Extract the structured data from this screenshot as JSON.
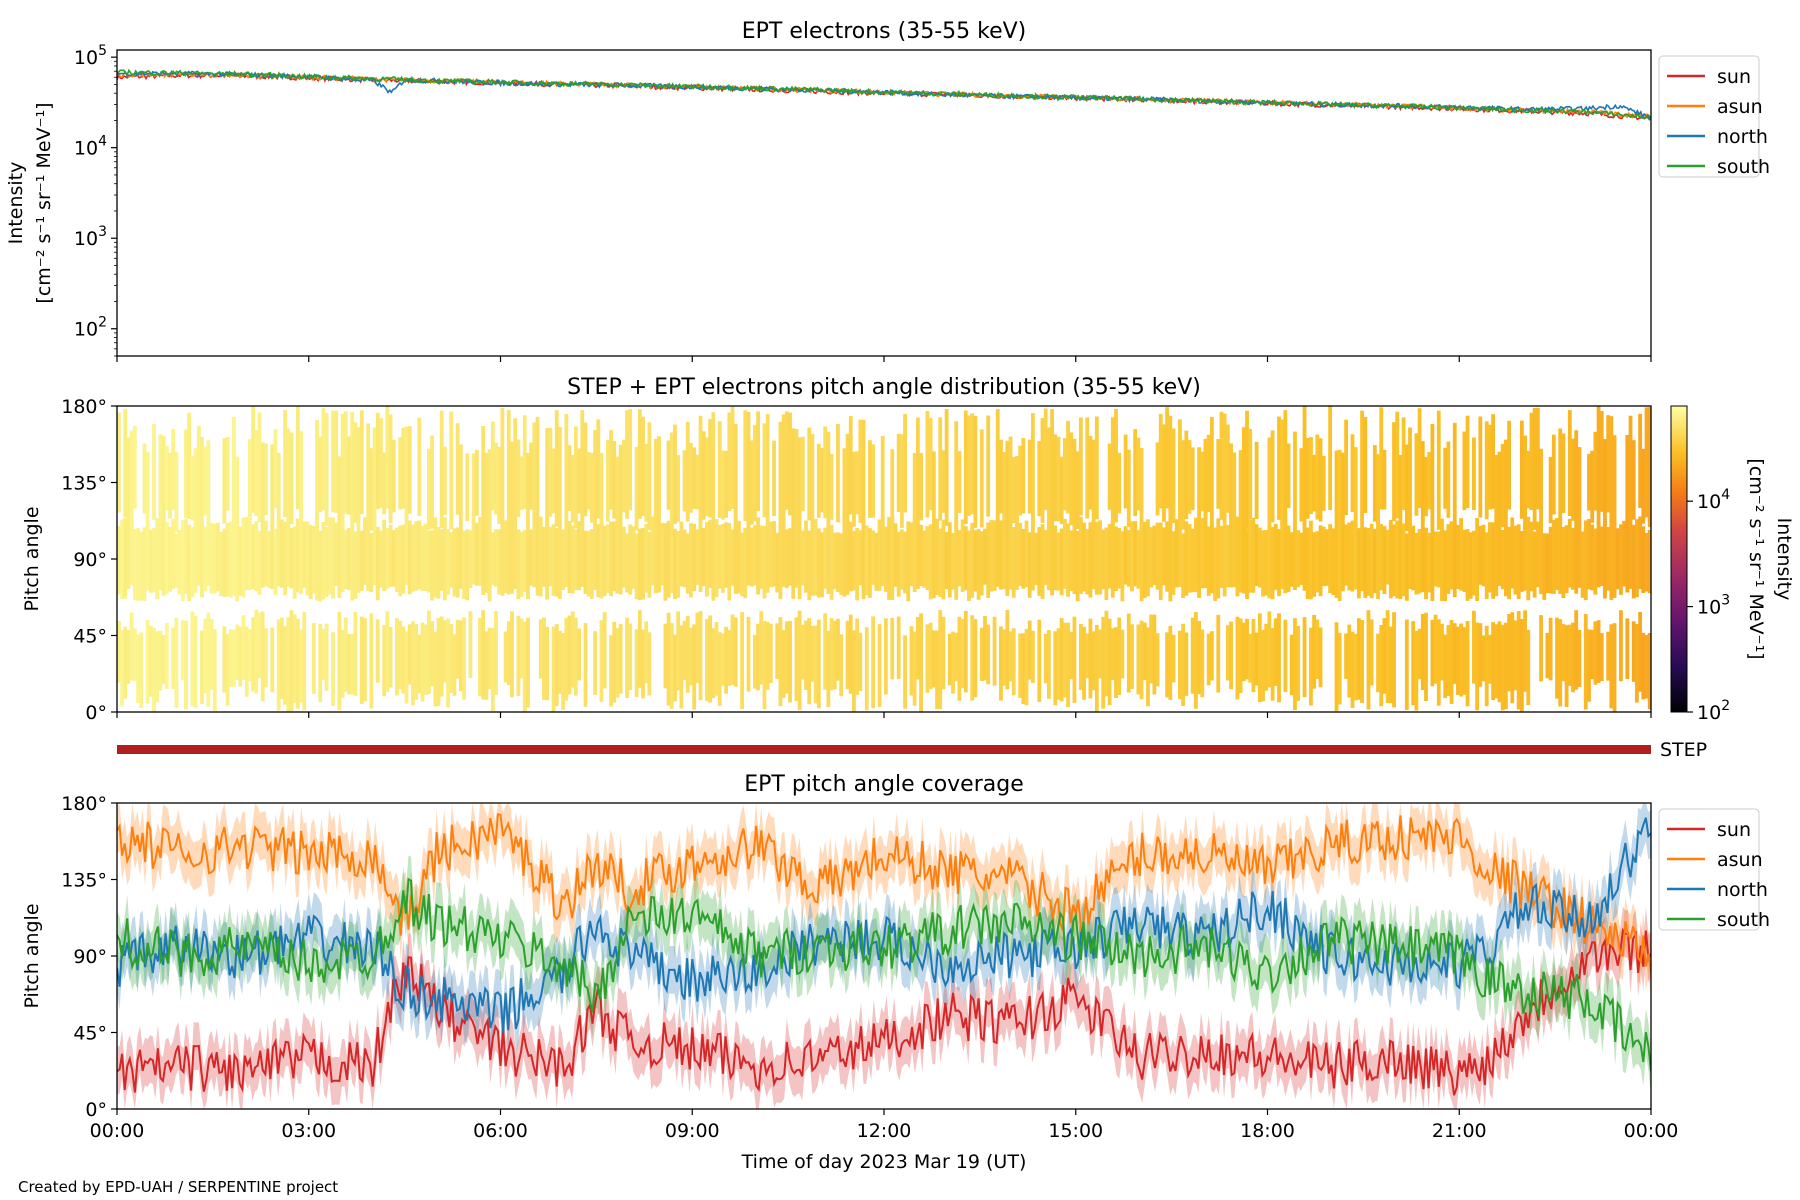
{
  "footer": {
    "credit": "Created by EPD-UAH / SERPENTINE project"
  },
  "chart_data": [
    {
      "type": "line",
      "title": "EPT electrons (35-55 keV)",
      "ylabel_lines": [
        "Intensity",
        "[cm⁻² s⁻¹ sr⁻¹ MeV⁻¹]"
      ],
      "yscale": "log",
      "ylim": [
        50,
        120000
      ],
      "yticks": [
        {
          "value": 100,
          "base": "10",
          "exp": "2"
        },
        {
          "value": 1000,
          "base": "10",
          "exp": "3"
        },
        {
          "value": 10000,
          "base": "10",
          "exp": "4"
        },
        {
          "value": 100000,
          "base": "10",
          "exp": "5"
        }
      ],
      "xlim_hours": [
        0,
        24
      ],
      "legend_position": "outside-right-top",
      "series": [
        {
          "name": "sun",
          "color": "#d62728",
          "x_hours": [
            0,
            1,
            2,
            3,
            4,
            5,
            6,
            7,
            8,
            9,
            10,
            11,
            12,
            13,
            14,
            15,
            16,
            17,
            18,
            19,
            20,
            21,
            22,
            23,
            24
          ],
          "values": [
            60000,
            63000,
            62000,
            59000,
            56000,
            54000,
            52000,
            50000,
            48000,
            46000,
            44000,
            42000,
            40000,
            38500,
            37000,
            35500,
            34000,
            32500,
            31000,
            29500,
            28500,
            27000,
            25500,
            24000,
            21000
          ]
        },
        {
          "name": "asun",
          "color": "#ff7f0e",
          "x_hours": [
            0,
            1,
            2,
            3,
            4,
            5,
            6,
            7,
            8,
            9,
            10,
            11,
            12,
            13,
            14,
            15,
            16,
            17,
            18,
            19,
            20,
            21,
            22,
            23,
            24
          ],
          "values": [
            64000,
            65000,
            63000,
            60000,
            57000,
            55000,
            53000,
            51000,
            49000,
            47000,
            45000,
            43000,
            41000,
            39000,
            37500,
            36000,
            34500,
            33000,
            31500,
            30000,
            29000,
            27500,
            26000,
            25000,
            22000
          ]
        },
        {
          "name": "north",
          "color": "#1f77b4",
          "x_hours": [
            0,
            1,
            2,
            3,
            4,
            4.3,
            4.5,
            5,
            6,
            7,
            8,
            9,
            10,
            11,
            12,
            13,
            14,
            15,
            16,
            17,
            18,
            19,
            20,
            21,
            22,
            23,
            23.5,
            24
          ],
          "values": [
            66000,
            66000,
            64000,
            61000,
            55000,
            40000,
            56000,
            55000,
            52000,
            50000,
            49000,
            47000,
            45000,
            43000,
            41000,
            38500,
            37000,
            35500,
            34500,
            33000,
            31500,
            30000,
            29000,
            28000,
            26500,
            27000,
            29000,
            21000
          ]
        },
        {
          "name": "south",
          "color": "#2ca02c",
          "x_hours": [
            0,
            1,
            2,
            3,
            4,
            5,
            6,
            7,
            8,
            9,
            10,
            11,
            12,
            13,
            14,
            15,
            16,
            17,
            18,
            19,
            20,
            21,
            22,
            23,
            24
          ],
          "values": [
            68000,
            67000,
            65000,
            61000,
            58000,
            55000,
            53000,
            51000,
            49500,
            47500,
            45500,
            43500,
            41000,
            39500,
            37500,
            36000,
            34500,
            33000,
            31500,
            30000,
            29000,
            27500,
            26000,
            25000,
            21500
          ]
        }
      ]
    },
    {
      "type": "heatmap",
      "title": "STEP + EPT electrons pitch angle distribution (35-55 keV)",
      "ylabel": "Pitch angle",
      "ylim": [
        0,
        180
      ],
      "yticks": [
        "0°",
        "45°",
        "90°",
        "135°",
        "180°"
      ],
      "xlim_hours": [
        0,
        24
      ],
      "colorbar": {
        "label_lines": [
          "Intensity",
          "[cm⁻² s⁻¹ sr⁻¹ MeV⁻¹]"
        ],
        "scale": "log",
        "range": [
          100,
          80000
        ],
        "ticks": [
          {
            "value": 100,
            "base": "10",
            "exp": "2"
          },
          {
            "value": 1000,
            "base": "10",
            "exp": "3"
          },
          {
            "value": 10000,
            "base": "10",
            "exp": "4"
          }
        ],
        "colormap": "inferno"
      },
      "hourly_intensity": [
        63000,
        64000,
        62000,
        60000,
        57000,
        55000,
        53000,
        51000,
        49000,
        47000,
        45000,
        43000,
        41000,
        39000,
        37500,
        36000,
        34500,
        33000,
        31500,
        30000,
        29000,
        27500,
        26000,
        24500,
        21000
      ]
    },
    {
      "type": "bar",
      "label": "STEP",
      "color": "#b11e1e",
      "coverage_hours": [
        0,
        24
      ]
    },
    {
      "type": "line",
      "title": "EPT pitch angle coverage",
      "ylabel": "Pitch angle",
      "xlabel": "Time of day 2023 Mar 19 (UT)",
      "ylim": [
        0,
        180
      ],
      "yticks": [
        "0°",
        "45°",
        "90°",
        "135°",
        "180°"
      ],
      "xlim_hours": [
        0,
        24
      ],
      "xticks": [
        "00:00",
        "03:00",
        "06:00",
        "09:00",
        "12:00",
        "15:00",
        "18:00",
        "21:00",
        "00:00"
      ],
      "legend_position": "outside-right-top",
      "series": [
        {
          "name": "sun",
          "color": "#d62728",
          "x_hours": [
            0,
            1,
            2,
            3,
            4,
            4.5,
            5,
            6,
            7,
            7.5,
            8,
            9,
            10,
            11,
            12,
            13,
            14,
            15,
            16,
            17,
            18,
            19,
            20,
            21,
            21.5,
            22,
            23,
            24
          ],
          "values": [
            20,
            25,
            22,
            30,
            25,
            85,
            60,
            35,
            25,
            60,
            40,
            35,
            25,
            30,
            40,
            55,
            50,
            65,
            30,
            35,
            30,
            25,
            30,
            20,
            30,
            55,
            90,
            95
          ]
        },
        {
          "name": "asun",
          "color": "#ff7f0e",
          "x_hours": [
            0,
            1,
            2,
            3,
            4,
            4.5,
            5,
            6,
            7,
            7.5,
            8,
            9,
            10,
            11,
            12,
            13,
            14,
            15,
            16,
            17,
            18,
            19,
            20,
            21,
            21.5,
            22,
            23,
            24
          ],
          "values": [
            160,
            150,
            155,
            150,
            150,
            110,
            150,
            165,
            120,
            145,
            130,
            145,
            155,
            130,
            150,
            140,
            135,
            115,
            150,
            150,
            140,
            155,
            160,
            160,
            140,
            130,
            110,
            90
          ]
        },
        {
          "name": "north",
          "color": "#1f77b4",
          "x_hours": [
            0,
            1,
            2,
            3,
            4,
            4.5,
            5,
            6,
            7,
            7.5,
            8,
            9,
            10,
            11,
            12,
            13,
            14,
            15,
            16,
            17,
            18,
            19,
            20,
            21,
            21.5,
            22,
            23,
            24
          ],
          "values": [
            85,
            95,
            90,
            100,
            95,
            70,
            65,
            55,
            80,
            110,
            90,
            75,
            80,
            100,
            100,
            85,
            90,
            95,
            110,
            100,
            120,
            90,
            85,
            85,
            95,
            120,
            110,
            165
          ]
        },
        {
          "name": "south",
          "color": "#2ca02c",
          "x_hours": [
            0,
            1,
            2,
            3,
            4,
            4.5,
            5,
            6,
            7,
            7.5,
            8,
            9,
            10,
            11,
            12,
            13,
            14,
            15,
            16,
            17,
            18,
            19,
            20,
            21,
            21.5,
            22,
            23,
            24
          ],
          "values": [
            100,
            90,
            95,
            85,
            90,
            125,
            110,
            100,
            85,
            65,
            110,
            115,
            90,
            95,
            95,
            105,
            110,
            100,
            90,
            95,
            80,
            100,
            95,
            90,
            75,
            70,
            65,
            30
          ]
        }
      ]
    }
  ]
}
